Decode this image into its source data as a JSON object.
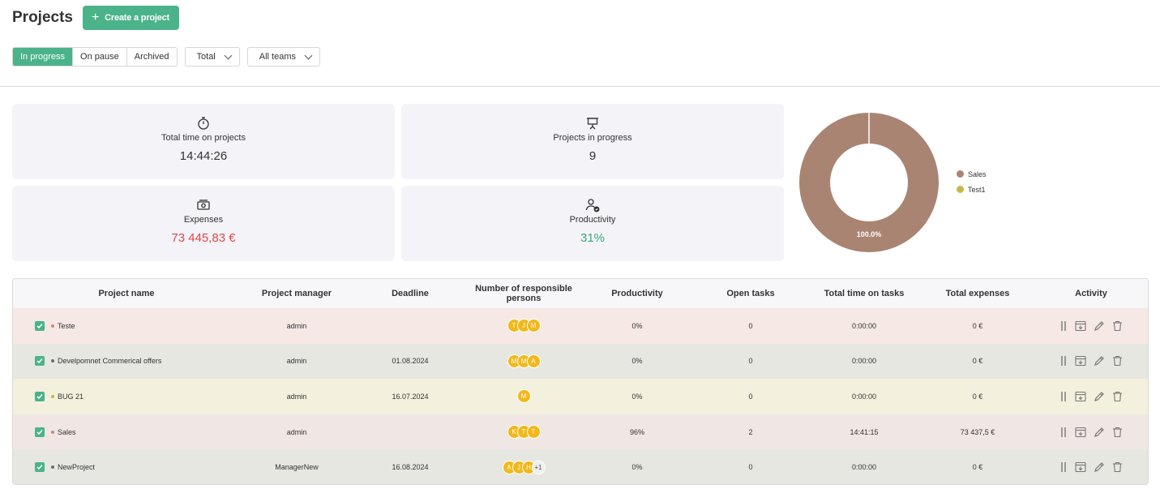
{
  "header": {
    "title": "Projects",
    "create_label": "Create a project"
  },
  "filters": {
    "status_tabs": [
      "In progress",
      "On pause",
      "Archived"
    ],
    "period": "Total",
    "teams": "All teams"
  },
  "stats": {
    "total_time": {
      "label": "Total time on projects",
      "value": "14:44:26",
      "icon": "stopwatch-icon"
    },
    "in_progress": {
      "label": "Projects in progress",
      "value": "9",
      "icon": "presentation-board-icon"
    },
    "expenses": {
      "label": "Expenses",
      "value": "73 445,83 €",
      "icon": "money-icon"
    },
    "productivity": {
      "label": "Productivity",
      "value": "31%",
      "icon": "user-check-icon"
    }
  },
  "chart_data": {
    "type": "pie",
    "categories": [
      "Sales",
      "Test1"
    ],
    "values": [
      100.0,
      0.0
    ],
    "colors": [
      "#a98472",
      "#c6b84a"
    ],
    "slice_label": "100.0%"
  },
  "table": {
    "columns": [
      "Project name",
      "Project manager",
      "Deadline",
      "Number of responsible persons",
      "Productivity",
      "Open tasks",
      "Total time on tasks",
      "Total expenses",
      "Activity"
    ],
    "rows": [
      {
        "name": "Teste",
        "manager": "admin",
        "deadline": "",
        "persons": [
          "T",
          "J",
          "M"
        ],
        "more": "",
        "productivity": "0%",
        "open": "0",
        "time": "0:00:00",
        "expenses": "0 €",
        "bg": "#f5e8e5",
        "dot": "#e0866a"
      },
      {
        "name": "Develpomnet Commerical offers",
        "manager": "admin",
        "deadline": "01.08.2024",
        "persons": [
          "M",
          "M",
          "A"
        ],
        "more": "",
        "productivity": "0%",
        "open": "0",
        "time": "0:00:00",
        "expenses": "0 €",
        "bg": "#e6e7e1",
        "dot": "#6b6b6b"
      },
      {
        "name": "BUG 21",
        "manager": "admin",
        "deadline": "16.07.2024",
        "persons": [
          "M"
        ],
        "more": "",
        "productivity": "0%",
        "open": "0",
        "time": "0:00:00",
        "expenses": "0 €",
        "bg": "#f3f0dd",
        "dot": "#c6b84a"
      },
      {
        "name": "Sales",
        "manager": "admin",
        "deadline": "",
        "persons": [
          "K",
          "T",
          "T"
        ],
        "more": "",
        "productivity": "96%",
        "open": "2",
        "time": "14:41:15",
        "expenses": "73 437,5 €",
        "bg": "#f0e6e3",
        "dot": "#c98a7a"
      },
      {
        "name": "NewProject",
        "manager": "ManagerNew",
        "deadline": "16.08.2024",
        "persons": [
          "A",
          "J",
          "H"
        ],
        "more": "+1",
        "productivity": "0%",
        "open": "0",
        "time": "0:00:00",
        "expenses": "0 €",
        "bg": "#e6e7e1",
        "dot": "#6b6b6b"
      }
    ]
  }
}
